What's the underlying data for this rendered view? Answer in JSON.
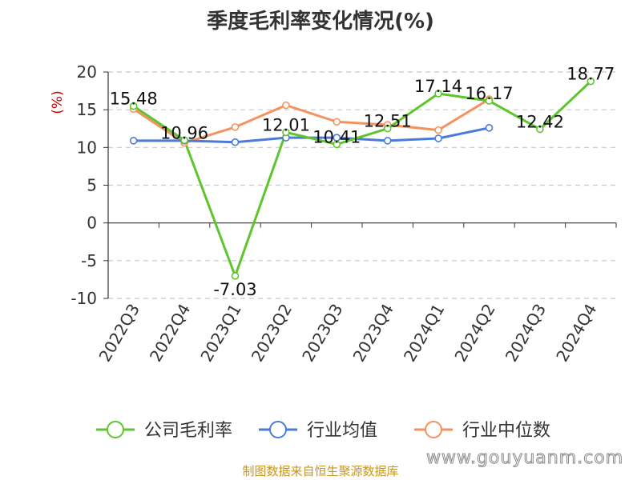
{
  "chart_data": {
    "type": "line",
    "title": "季度毛利率变化情况(%)",
    "ylabel": "(%)",
    "xlabel": "",
    "ylim": [
      -10,
      20
    ],
    "yticks": [
      20,
      15,
      10,
      5,
      0,
      -5,
      -10
    ],
    "grid": true,
    "legend_position": "bottom",
    "categories": [
      "2022Q3",
      "2022Q4",
      "2023Q1",
      "2023Q2",
      "2023Q3",
      "2023Q4",
      "2024Q1",
      "2024Q2",
      "2024Q3",
      "2024Q4"
    ],
    "series": [
      {
        "name": "公司毛利率",
        "color": "#5ec52c",
        "values": [
          15.48,
          10.96,
          -7.03,
          12.01,
          10.41,
          12.51,
          17.14,
          16.17,
          12.42,
          18.77
        ],
        "labels": [
          "15.48",
          "10.96",
          "-7.03",
          "12.01",
          "10.41",
          "12.51",
          "17.14",
          "16.17",
          "12.42",
          "18.77"
        ]
      },
      {
        "name": "行业均值",
        "color": "#4b7bd8",
        "values": [
          10.9,
          10.9,
          10.7,
          11.3,
          11.3,
          10.9,
          11.2,
          12.6,
          null,
          null
        ]
      },
      {
        "name": "行业中位数",
        "color": "#f4925f",
        "values": [
          15.1,
          10.6,
          12.7,
          15.6,
          13.4,
          13.0,
          12.3,
          16.4,
          null,
          null
        ]
      }
    ]
  },
  "footer": {
    "source": "制图数据来自恒生聚源数据库",
    "watermark": "www.gouyuanm.com"
  }
}
